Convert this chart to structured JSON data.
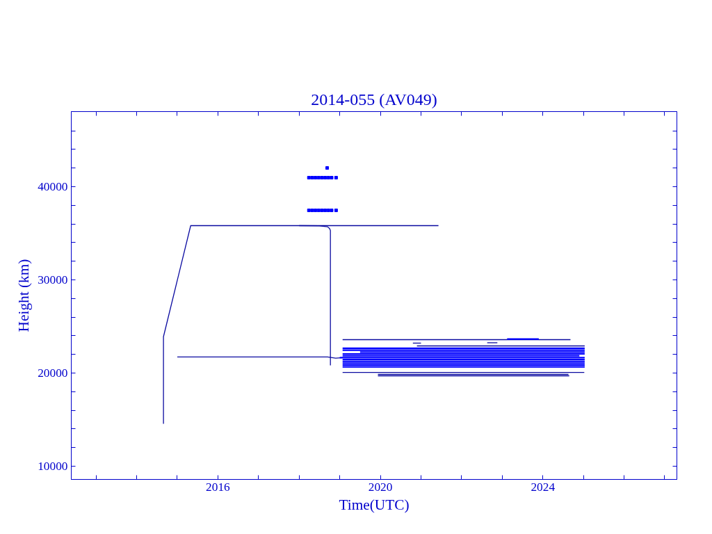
{
  "chart_data": {
    "type": "line",
    "title": "2014-055 (AV049)",
    "xlabel": "Time(UTC)",
    "ylabel": "Height (km)",
    "xlim": [
      2012.39,
      2027.3
    ],
    "ylim": [
      8580,
      48060
    ],
    "xticks": [
      {
        "value": 2013,
        "label": null
      },
      {
        "value": 2014,
        "label": null
      },
      {
        "value": 2015,
        "label": null
      },
      2016,
      {
        "value": 2017,
        "label": null
      },
      {
        "value": 2018,
        "label": null
      },
      {
        "value": 2019,
        "label": null
      },
      2020,
      {
        "value": 2021,
        "label": null
      },
      {
        "value": 2022,
        "label": null
      },
      {
        "value": 2023,
        "label": null
      },
      2024,
      {
        "value": 2025,
        "label": null
      },
      {
        "value": 2026,
        "label": null
      },
      {
        "value": 2027,
        "label": null
      }
    ],
    "yticks": [
      10000,
      {
        "value": 12000,
        "label": null
      },
      {
        "value": 14000,
        "label": null
      },
      {
        "value": 16000,
        "label": null
      },
      {
        "value": 18000,
        "label": null
      },
      20000,
      {
        "value": 22000,
        "label": null
      },
      {
        "value": 24000,
        "label": null
      },
      {
        "value": 26000,
        "label": null
      },
      {
        "value": 28000,
        "label": null
      },
      30000,
      {
        "value": 32000,
        "label": null
      },
      {
        "value": 34000,
        "label": null
      },
      {
        "value": 36000,
        "label": null
      },
      {
        "value": 38000,
        "label": null
      },
      40000,
      {
        "value": 42000,
        "label": null
      },
      {
        "value": 44000,
        "label": null
      },
      {
        "value": 46000,
        "label": null
      }
    ],
    "grid": false,
    "marker": "none",
    "line_style": "solid",
    "series": [
      {
        "color": "#0a0aa0",
        "x": [
          2014.66,
          2014.66,
          2015.33,
          2018.0,
          2021.43
        ],
        "values": [
          14550,
          23900,
          35820,
          35820,
          35820
        ]
      },
      {
        "color": "#0a0aa0",
        "x": [
          2018.0,
          2018.5,
          2018.7,
          2018.75,
          2018.77,
          2018.77
        ],
        "values": [
          35820,
          35800,
          35700,
          35500,
          35300,
          20820
        ]
      },
      {
        "color": "#0a0aa0",
        "x": [
          2015.0,
          2018.7,
          2018.9,
          2019.07
        ],
        "values": [
          21720,
          21720,
          21600,
          21650
        ]
      },
      {
        "color": "#0000ff",
        "x": [
          2019.07,
          2025.03
        ],
        "values": [
          22650,
          22650
        ]
      },
      {
        "color": "#0000ff",
        "x": [
          2019.07,
          2025.03
        ],
        "values": [
          22450,
          22450
        ]
      },
      {
        "color": "#0000ff",
        "x": [
          2019.5,
          2025.03
        ],
        "values": [
          22250,
          22250
        ]
      },
      {
        "color": "#0000ff",
        "x": [
          2019.07,
          2025.03
        ],
        "values": [
          22050,
          22050
        ]
      },
      {
        "color": "#0000ff",
        "x": [
          2019.07,
          2024.9
        ],
        "values": [
          21850,
          21850
        ]
      },
      {
        "color": "#0000ff",
        "x": [
          2019.0,
          2025.03
        ],
        "values": [
          21650,
          21650
        ]
      },
      {
        "color": "#0000ff",
        "x": [
          2019.07,
          2025.03
        ],
        "values": [
          21450,
          21450
        ]
      },
      {
        "color": "#0000ff",
        "x": [
          2019.07,
          2025.03
        ],
        "values": [
          21250,
          21250
        ]
      },
      {
        "color": "#0000ff",
        "x": [
          2019.07,
          2025.03
        ],
        "values": [
          21050,
          21050
        ]
      },
      {
        "color": "#0000ff",
        "x": [
          2019.07,
          2025.03
        ],
        "values": [
          20850,
          20850
        ]
      },
      {
        "color": "#0000ff",
        "x": [
          2019.07,
          2025.03
        ],
        "values": [
          20650,
          20650
        ]
      },
      {
        "color": "#0a0aa0",
        "x": [
          2019.07,
          2024.68
        ],
        "values": [
          23580,
          23580
        ]
      },
      {
        "color": "#0a0aa0",
        "x": [
          2020.9,
          2025.03
        ],
        "values": [
          22910,
          22910
        ]
      },
      {
        "color": "#0a0aa0",
        "x": [
          2019.07,
          2025.02
        ],
        "values": [
          20070,
          20070
        ]
      },
      {
        "color": "#0a0aa0",
        "x": [
          2019.94,
          2024.63
        ],
        "values": [
          19850,
          19850
        ]
      },
      {
        "color": "#0a0aa0",
        "x": [
          2019.94,
          2024.65
        ],
        "values": [
          19700,
          19700
        ]
      },
      {
        "color": "#0a0aa0",
        "x": [
          2020.8,
          2021.0
        ],
        "values": [
          23210,
          23210
        ]
      },
      {
        "color": "#0a0aa0",
        "x": [
          2022.63,
          2022.88
        ],
        "values": [
          23250,
          23250
        ]
      },
      {
        "color": "#0000ff",
        "x": [
          2023.12,
          2023.9
        ],
        "values": [
          23650,
          23650
        ]
      },
      {
        "type": "scatter",
        "marker": "square",
        "color": "#0000ff",
        "x": [
          2018.24,
          2018.32,
          2018.4,
          2018.48,
          2018.56,
          2018.64,
          2018.72,
          2018.8,
          2018.91
        ],
        "values": [
          40970,
          40970,
          40970,
          40970,
          40970,
          40970,
          40970,
          40970,
          40970
        ]
      },
      {
        "type": "scatter",
        "marker": "square",
        "color": "#0000ff",
        "x": [
          2018.24,
          2018.32,
          2018.4,
          2018.48,
          2018.56,
          2018.64,
          2018.72,
          2018.8,
          2018.91
        ],
        "values": [
          37460,
          37460,
          37460,
          37460,
          37460,
          37460,
          37460,
          37460,
          37460
        ]
      },
      {
        "type": "scatter",
        "marker": "square",
        "color": "#0000ff",
        "x": [
          2018.69
        ],
        "values": [
          42010
        ]
      }
    ]
  }
}
